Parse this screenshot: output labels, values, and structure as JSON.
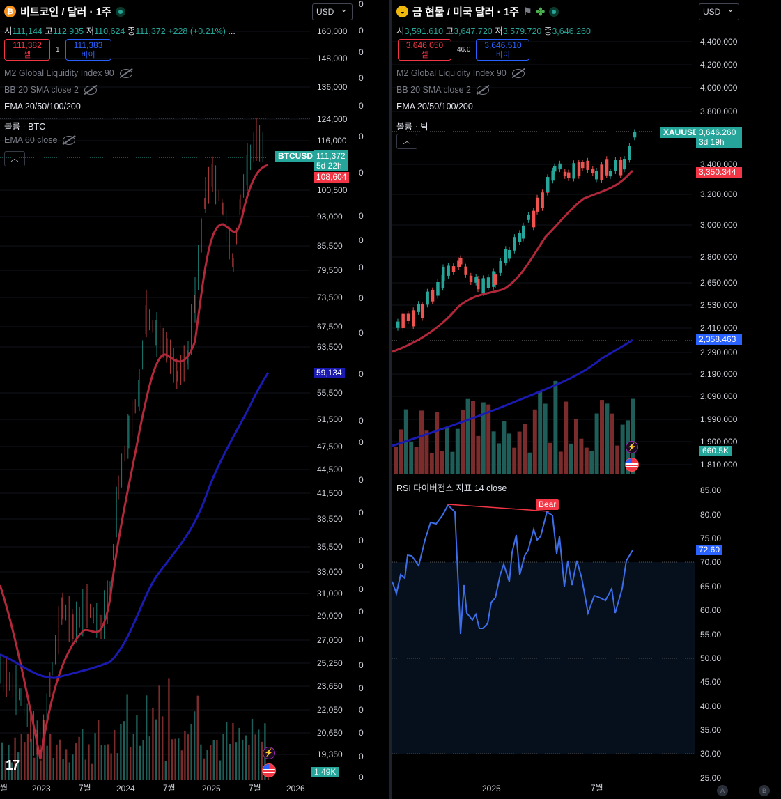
{
  "left": {
    "title": "비트코인 / 달러 · 1주",
    "currency": "USD",
    "ohlc": {
      "o_label": "시",
      "o": "111,144",
      "h_label": "고",
      "h": "112,935",
      "l_label": "저",
      "l": "110,624",
      "c_label": "종",
      "c": "111,372",
      "change": "+228 (+0.21%)",
      "more": "..."
    },
    "sell": {
      "price": "111,382",
      "label": "셀"
    },
    "buy": {
      "price": "111,383",
      "label": "바이"
    },
    "spread": "1",
    "indicators": [
      "M2 Global Liquidity Index 90",
      "BB 20 SMA close 2",
      "EMA 20/50/100/200",
      "볼륨 · BTC",
      "EMA 60 close"
    ],
    "y_ticks": [
      "160,000",
      "148,000",
      "136,000",
      "124,000",
      "116,000",
      "100,500",
      "93,000",
      "85,500",
      "79,500",
      "73,500",
      "67,500",
      "63,500",
      "55,500",
      "51,500",
      "47,500",
      "44,500",
      "41,500",
      "38,500",
      "35,500",
      "33,000",
      "31,000",
      "29,000",
      "27,000",
      "25,250",
      "23,650",
      "22,050",
      "20,650",
      "19,350"
    ],
    "zero_ticks": [
      "0",
      "0",
      "0",
      "0",
      "0",
      "0",
      "0",
      "0",
      "0",
      "0",
      "0",
      "0",
      "0",
      "0",
      "0",
      "0",
      "0",
      "0",
      "0",
      "0",
      "0",
      "0",
      "0",
      "0",
      "0",
      "0",
      "0",
      "0",
      "0",
      "0",
      "0"
    ],
    "price_tag": {
      "symbol": "BTCUSD",
      "price": "111,372",
      "countdown": "5d 22h"
    },
    "ema_tag": "108,604",
    "ema60_tag": "59,134",
    "volume_tag": "1.49K",
    "x_labels": [
      "월",
      "2023",
      "7월",
      "2024",
      "7월",
      "2025",
      "7월",
      "2026"
    ],
    "logo": "17"
  },
  "right": {
    "title": "금 현물 / 미국 달러 · 1주",
    "currency": "USD",
    "ohlc": {
      "o_label": "시",
      "o": "3,591.610",
      "h_label": "고",
      "h": "3,647.720",
      "l_label": "저",
      "l": "3,579.720",
      "c_label": "종",
      "c": "3,646.260"
    },
    "sell": {
      "price": "3,646.050",
      "label": "셀"
    },
    "buy": {
      "price": "3,646.510",
      "label": "바이"
    },
    "spread": "46.0",
    "indicators": [
      "M2 Global Liquidity Index 90",
      "BB 20 SMA close 2",
      "EMA 20/50/100/200",
      "볼륨 · 틱"
    ],
    "y_ticks": [
      "4,400.000",
      "4,200.000",
      "4,000.000",
      "3,800.000",
      "3,400.000",
      "3,200.000",
      "3,000.000",
      "2,800.000",
      "2,650.000",
      "2,530.000",
      "2,410.000",
      "2,290.000",
      "2,190.000",
      "2,090.000",
      "1,990.000",
      "1,900.000",
      "1,810.000"
    ],
    "price_tag": {
      "symbol": "XAUUSD",
      "price": "3,646.260",
      "countdown": "3d 19h"
    },
    "ema_tag": "3,350.344",
    "ema_long_tag": "2,358.463",
    "volume_tag": "660.5K",
    "rsi": {
      "title": "RSI 다이버전스 지표 14 close",
      "bear_label": "Bear",
      "value_tag": "72.60",
      "ticks": [
        "85.00",
        "80.00",
        "75.00",
        "70.00",
        "65.00",
        "60.00",
        "55.00",
        "50.00",
        "45.00",
        "40.00",
        "35.00",
        "30.00",
        "25.00"
      ]
    },
    "x_labels": [
      "2025",
      "7월"
    ],
    "corner": [
      "A",
      "B"
    ]
  },
  "colors": {
    "up": "#26a69a",
    "down": "#ef5350",
    "ema_short": "#b2283a",
    "ema_long": "#1a1ab0",
    "tag_green": "#26a69a",
    "tag_red": "#f23645",
    "tag_blue": "#2962ff"
  }
}
